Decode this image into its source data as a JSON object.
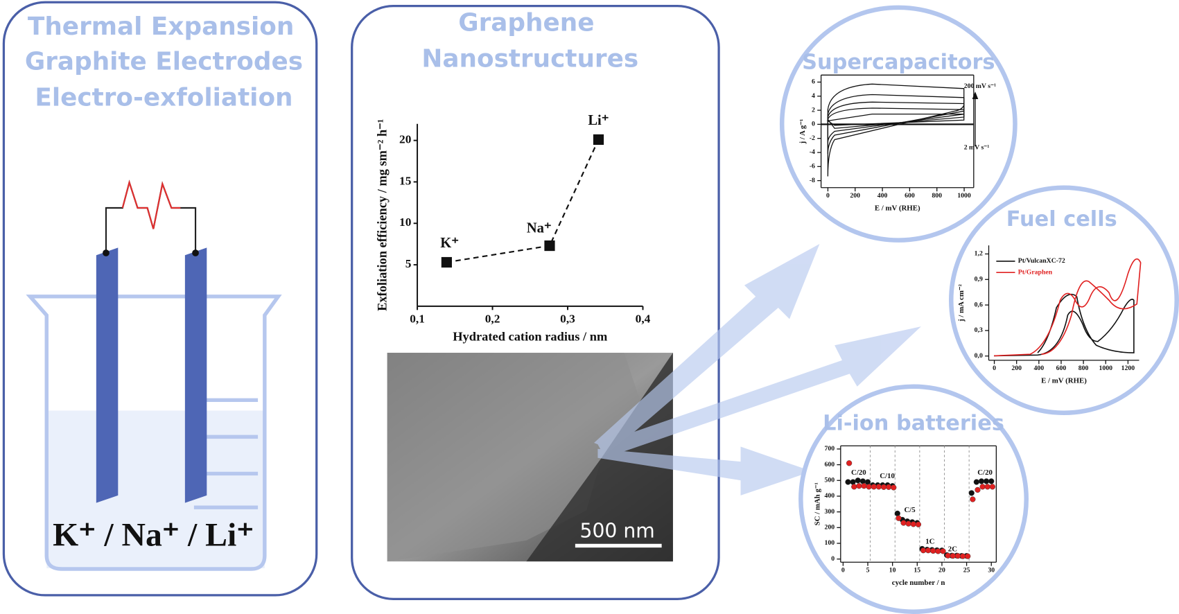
{
  "left_panel": {
    "title": [
      "Thermal Expansion",
      "Graphite Electrodes",
      "Electro-exfoliation"
    ],
    "ions_label": "K⁺ / Na⁺ / Li⁺"
  },
  "center_panel": {
    "title": [
      "Graphene",
      "Nanostructures"
    ],
    "chart": {
      "type": "scatter",
      "x_label": "Hydrated cation radius / nm",
      "y_label": "Exfoliation efficiency / mg sm⁻² h⁻¹",
      "x": [
        0.139,
        0.276,
        0.341
      ],
      "values": [
        5.3,
        7.3,
        20.1
      ],
      "point_labels": [
        "K⁺",
        "Na⁺",
        "Li⁺"
      ],
      "xlim": [
        0.1,
        0.4
      ],
      "xticks": [
        {
          "value": 0.1,
          "label": "0,1"
        },
        {
          "value": 0.2,
          "label": "0,2"
        },
        {
          "value": 0.3,
          "label": "0,3"
        },
        {
          "value": 0.4,
          "label": "0,4"
        }
      ],
      "ylim": [
        0,
        22
      ],
      "yticks": [
        5,
        10,
        15,
        20
      ]
    },
    "micrograph": {
      "scale_bar": "500 nm"
    }
  },
  "applications": {
    "supercapacitors": {
      "title": "Supercapacitors",
      "chart": {
        "type": "line",
        "x_label": "E / mV (RHE)",
        "y_label": "j / A g⁻¹",
        "annotations": [
          "200 mV s⁻¹",
          "2 mV s⁻¹"
        ],
        "xlim": [
          -50,
          1070
        ],
        "xticks": [
          0,
          200,
          400,
          600,
          800,
          1000
        ],
        "ylim": [
          -9,
          7
        ],
        "yticks": [
          -8,
          -6,
          -4,
          -2,
          0,
          2,
          4,
          6
        ]
      }
    },
    "fuel_cells": {
      "title": "Fuel cells",
      "chart": {
        "type": "line",
        "x_label": "E / mV (RHE)",
        "y_label": "j / mA cm⁻²",
        "legend": [
          {
            "name": "Pt/VulcanXC-72",
            "color": "#111111"
          },
          {
            "name": "Pt/Graphen",
            "color": "#e02020"
          }
        ],
        "xlim": [
          -50,
          1300
        ],
        "xticks": [
          0,
          200,
          400,
          600,
          800,
          1000,
          1200
        ],
        "ylim": [
          -0.05,
          1.3
        ],
        "yticks": [
          {
            "value": 0,
            "label": "0,0"
          },
          {
            "value": 0.3,
            "label": "0,3"
          },
          {
            "value": 0.6,
            "label": "0,6"
          },
          {
            "value": 0.9,
            "label": "0,9"
          },
          {
            "value": 1.2,
            "label": "1,2"
          }
        ]
      }
    },
    "li_ion_batteries": {
      "title": "Li-ion batteries",
      "chart": {
        "type": "scatter",
        "x_label": "cycle number / n",
        "y_label": "SC / mAh g⁻¹",
        "annotations": [
          "C/20",
          "C/10",
          "C/5",
          "1C",
          "2C",
          "C/20"
        ],
        "x": [
          1,
          2,
          3,
          4,
          5,
          6,
          7,
          8,
          9,
          10,
          11,
          12,
          13,
          14,
          15,
          16,
          17,
          18,
          19,
          20,
          21,
          22,
          23,
          24,
          25,
          26,
          27,
          28,
          29,
          30
        ],
        "series": [
          {
            "color": "#111111",
            "values": [
              490,
              490,
              500,
              495,
              490,
              470,
              470,
              470,
              470,
              465,
              290,
              250,
              240,
              235,
              230,
              65,
              60,
              58,
              56,
              55,
              25,
              22,
              22,
              20,
              20,
              420,
              490,
              495,
              495,
              495
            ]
          },
          {
            "color": "#e02020",
            "values": [
              610,
              460,
              465,
              465,
              460,
              460,
              460,
              458,
              458,
              455,
              260,
              230,
              225,
              222,
              220,
              55,
              55,
              52,
              50,
              50,
              22,
              20,
              20,
              18,
              18,
              380,
              440,
              460,
              460,
              460
            ]
          }
        ],
        "xlim": [
          -0.5,
          31
        ],
        "xticks": [
          0,
          5,
          10,
          15,
          20,
          25,
          30
        ],
        "ylim": [
          -20,
          720
        ],
        "yticks": [
          0,
          100,
          200,
          300,
          400,
          500,
          600,
          700
        ]
      }
    }
  }
}
